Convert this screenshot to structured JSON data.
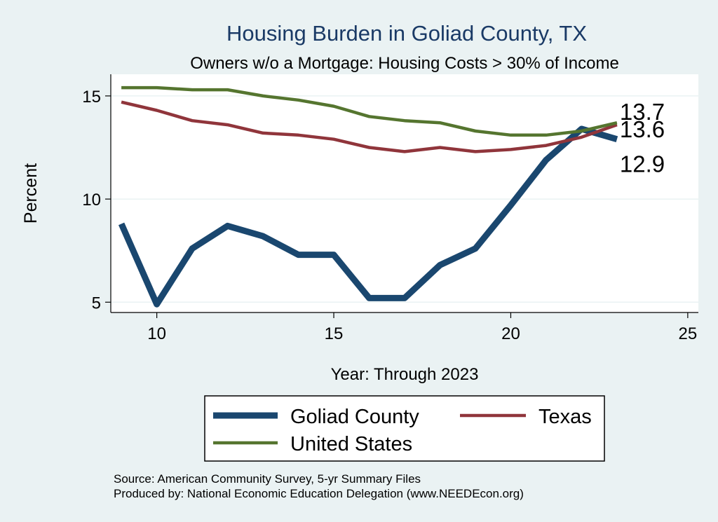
{
  "chart_data": {
    "type": "line",
    "title": "Housing Burden in Goliad County, TX",
    "subtitle": "Owners w/o a Mortgage: Housing Costs > 30% of Income",
    "xlabel": "Year: Through 2023",
    "ylabel": "Percent",
    "xlim": [
      8.7,
      25.3
    ],
    "ylim": [
      4.5,
      16.05
    ],
    "x_ticks": [
      10,
      15,
      20,
      25
    ],
    "y_ticks": [
      5,
      10,
      15
    ],
    "grid": true,
    "legend_position": "bottom",
    "x": [
      9,
      10,
      11,
      12,
      13,
      14,
      15,
      16,
      17,
      18,
      19,
      20,
      21,
      22,
      23
    ],
    "series": [
      {
        "name": "Goliad County",
        "color": "#1a476f",
        "line_width": "thick",
        "values": [
          8.8,
          4.9,
          7.6,
          8.7,
          8.2,
          7.3,
          7.3,
          5.2,
          5.2,
          6.8,
          7.6,
          9.7,
          11.9,
          13.4,
          12.9
        ],
        "end_label": "12.9"
      },
      {
        "name": "Texas",
        "color": "#90353b",
        "line_width": "medium",
        "values": [
          14.7,
          14.3,
          13.8,
          13.6,
          13.2,
          13.1,
          12.9,
          12.5,
          12.3,
          12.5,
          12.3,
          12.4,
          12.6,
          13.0,
          13.6
        ],
        "end_label": "13.6"
      },
      {
        "name": "United States",
        "color": "#55752f",
        "line_width": "medium",
        "values": [
          15.4,
          15.4,
          15.3,
          15.3,
          15.0,
          14.8,
          14.5,
          14.0,
          13.8,
          13.7,
          13.3,
          13.1,
          13.1,
          13.3,
          13.7
        ],
        "end_label": "13.7"
      }
    ]
  },
  "legend": {
    "items": [
      "Goliad County",
      "Texas",
      "United States"
    ]
  },
  "notes": {
    "source": "Source: American Community Survey, 5-yr Summary Files",
    "produced_by": "Produced by: National Economic Education Delegation (www.NEEDEcon.org)"
  }
}
